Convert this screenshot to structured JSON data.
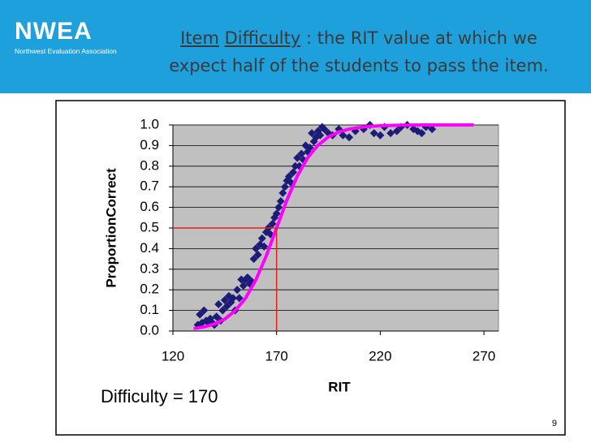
{
  "logo": {
    "name": "NWEA",
    "subtitle": "Northwest Evaluation Association"
  },
  "title": {
    "segments": [
      {
        "text": "Item",
        "underline": true
      },
      {
        "text": "Difficulty",
        "underline": true
      },
      {
        "text": ": the RIT value at which we",
        "underline": false
      },
      {
        "text": "expect half of the students to pass the item.",
        "underline": false
      }
    ]
  },
  "page_number": "9",
  "chart_data": {
    "type": "scatter",
    "xlabel": "RIT",
    "ylabel": "ProportionCorrect",
    "annotation": "Difficulty = 170",
    "xlim": [
      120,
      277
    ],
    "xticks": [
      120,
      170,
      220,
      270
    ],
    "ylim": [
      0,
      1
    ],
    "yticks": [
      {
        "value": 0,
        "label": "0.0"
      },
      0.1,
      0.2,
      0.3,
      0.4,
      0.5,
      0.6,
      0.7,
      0.8,
      0.9,
      {
        "value": 1,
        "label": "1.0"
      }
    ],
    "grid": true,
    "reference": {
      "x": 170,
      "y": 0.5,
      "color": "#e02020"
    },
    "series": [
      {
        "type": "scatter",
        "color": "#1c1c78",
        "x": [
          132,
          133,
          134,
          135,
          136,
          137,
          138,
          139,
          140,
          141,
          142,
          143,
          144,
          145,
          146,
          147,
          148,
          149,
          150,
          151,
          152,
          153,
          154,
          155,
          156,
          157,
          158,
          159,
          160,
          161,
          162,
          163,
          164,
          165,
          166,
          167,
          168,
          169,
          170,
          171,
          172,
          173,
          174,
          175,
          176,
          177,
          178,
          179,
          180,
          181,
          182,
          183,
          184,
          185,
          186,
          187,
          188,
          189,
          190,
          191,
          192,
          193,
          195,
          197,
          200,
          202,
          205,
          208,
          212,
          215,
          217,
          220,
          222,
          225,
          228,
          230,
          233,
          236,
          238,
          240,
          242,
          245
        ],
        "values": [
          0.03,
          0.08,
          0.04,
          0.1,
          0.05,
          0.04,
          0.06,
          0.04,
          0.03,
          0.07,
          0.13,
          0.05,
          0.1,
          0.15,
          0.12,
          0.17,
          0.14,
          0.16,
          0.1,
          0.2,
          0.16,
          0.25,
          0.22,
          0.25,
          0.26,
          0.23,
          0.24,
          0.35,
          0.4,
          0.37,
          0.42,
          0.45,
          0.41,
          0.48,
          0.5,
          0.47,
          0.52,
          0.55,
          0.57,
          0.6,
          0.63,
          0.67,
          0.7,
          0.73,
          0.75,
          0.72,
          0.77,
          0.8,
          0.84,
          0.8,
          0.86,
          0.83,
          0.9,
          0.87,
          0.89,
          0.96,
          0.92,
          0.94,
          0.97,
          0.95,
          0.99,
          0.98,
          0.96,
          0.95,
          0.98,
          0.95,
          0.94,
          0.97,
          0.98,
          1.0,
          0.96,
          0.95,
          0.99,
          0.96,
          0.97,
          0.99,
          1.0,
          0.98,
          0.97,
          0.96,
          0.99,
          0.98
        ]
      },
      {
        "type": "line",
        "color": "#ff00ff",
        "x": [
          130,
          135,
          140,
          145,
          150,
          155,
          160,
          165,
          170,
          175,
          180,
          185,
          190,
          195,
          200,
          205,
          210,
          215,
          220,
          230,
          240,
          250,
          265
        ],
        "values": [
          0.012,
          0.02,
          0.034,
          0.058,
          0.098,
          0.159,
          0.248,
          0.364,
          0.5,
          0.636,
          0.752,
          0.841,
          0.902,
          0.942,
          0.966,
          0.98,
          0.988,
          0.993,
          0.996,
          0.999,
          1.0,
          1.0,
          1.0
        ]
      }
    ]
  }
}
